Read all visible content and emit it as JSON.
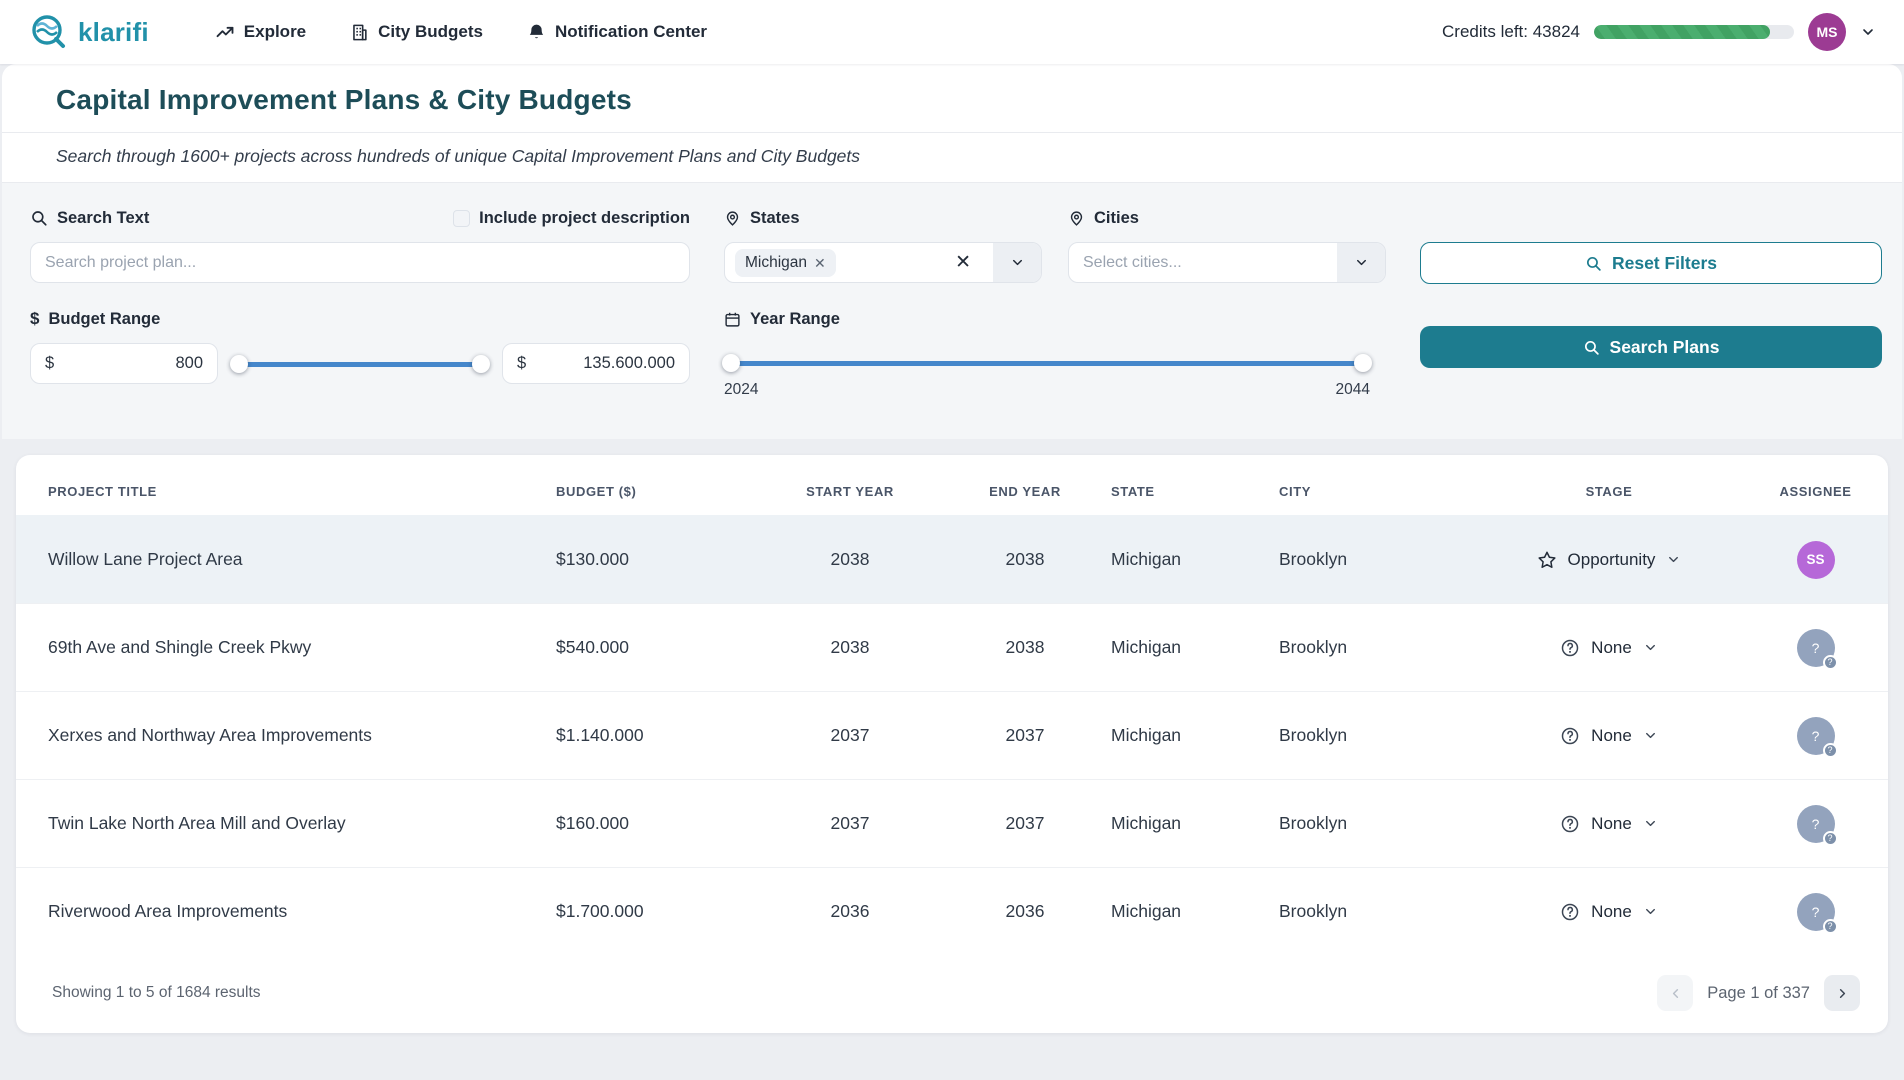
{
  "header": {
    "brand": "klarifi",
    "nav": [
      {
        "label": "Explore",
        "icon": "trend-up-icon"
      },
      {
        "label": "City Budgets",
        "icon": "building-icon"
      },
      {
        "label": "Notification Center",
        "icon": "bell-icon"
      }
    ],
    "credits_label": "Credits left: 43824",
    "credits_percent": 88,
    "avatar_initials": "MS"
  },
  "page": {
    "title": "Capital Improvement Plans & City Budgets",
    "subtitle": "Search through 1600+ projects across hundreds of unique Capital Improvement Plans and City Budgets"
  },
  "filters": {
    "search_label": "Search Text",
    "search_placeholder": "Search project plan...",
    "include_description_label": "Include project description",
    "include_description_checked": false,
    "states_label": "States",
    "states_selected": [
      "Michigan"
    ],
    "cities_label": "Cities",
    "cities_placeholder": "Select cities...",
    "reset_button_label": "Reset Filters",
    "search_button_label": "Search Plans",
    "budget_label": "Budget Range",
    "currency_symbol": "$",
    "budget_min_value": "800",
    "budget_max_value": "135.600.000",
    "year_label": "Year Range",
    "year_min": "2024",
    "year_max": "2044"
  },
  "table": {
    "columns": [
      "PROJECT TITLE",
      "BUDGET ($)",
      "START YEAR",
      "END YEAR",
      "STATE",
      "CITY",
      "STAGE",
      "ASSIGNEE"
    ],
    "rows": [
      {
        "title": "Willow Lane Project Area",
        "budget": "$130.000",
        "start": "2038",
        "end": "2038",
        "state": "Michigan",
        "city": "Brooklyn",
        "stage": "Opportunity",
        "stage_icon": "star",
        "assignee": "SS",
        "highlighted": true
      },
      {
        "title": "69th Ave and Shingle Creek Pkwy",
        "budget": "$540.000",
        "start": "2038",
        "end": "2038",
        "state": "Michigan",
        "city": "Brooklyn",
        "stage": "None",
        "stage_icon": "help",
        "assignee": null,
        "highlighted": false
      },
      {
        "title": "Xerxes and Northway Area Improvements",
        "budget": "$1.140.000",
        "start": "2037",
        "end": "2037",
        "state": "Michigan",
        "city": "Brooklyn",
        "stage": "None",
        "stage_icon": "help",
        "assignee": null,
        "highlighted": false
      },
      {
        "title": "Twin Lake North Area Mill and Overlay",
        "budget": "$160.000",
        "start": "2037",
        "end": "2037",
        "state": "Michigan",
        "city": "Brooklyn",
        "stage": "None",
        "stage_icon": "help",
        "assignee": null,
        "highlighted": false
      },
      {
        "title": "Riverwood Area Improvements",
        "budget": "$1.700.000",
        "start": "2036",
        "end": "2036",
        "state": "Michigan",
        "city": "Brooklyn",
        "stage": "None",
        "stage_icon": "help",
        "assignee": null,
        "highlighted": false
      }
    ]
  },
  "footer": {
    "showing": "Showing 1 to 5 of 1684 results",
    "page_label": "Page 1 of 337"
  },
  "colors": {
    "accent_teal": "#1d7c8f",
    "brand_teal": "#2191a9",
    "title_teal": "#1d4d58",
    "slider_blue": "#4587cb",
    "credits_green": "#44a868",
    "header_avatar_purple": "#9c3b93",
    "assignee_purple": "#b668d8",
    "assignee_gray": "#93a3bd",
    "row_highlight": "#edf2f6"
  }
}
